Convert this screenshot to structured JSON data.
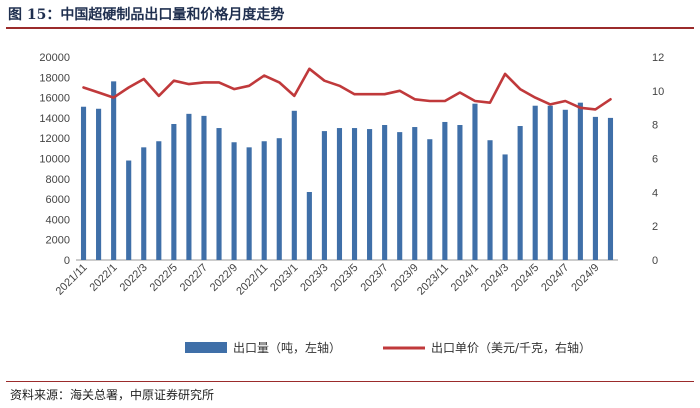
{
  "figure": {
    "title": "图 15：中国超硬制品出口量和价格月度走势",
    "source": "资料来源：海关总署，中原证券研究所"
  },
  "chart_data": {
    "type": "bar+line",
    "categories": [
      "2021/11",
      "2021/12",
      "2022/1",
      "2022/2",
      "2022/3",
      "2022/4",
      "2022/5",
      "2022/6",
      "2022/7",
      "2022/8",
      "2022/9",
      "2022/10",
      "2022/11",
      "2022/12",
      "2023/1",
      "2023/2",
      "2023/3",
      "2023/4",
      "2023/5",
      "2023/6",
      "2023/7",
      "2023/8",
      "2023/9",
      "2023/10",
      "2023/11",
      "2023/12",
      "2024/1",
      "2024/2",
      "2024/3",
      "2024/4",
      "2024/5",
      "2024/6",
      "2024/7",
      "2024/8",
      "2024/9",
      "2024/10"
    ],
    "x_tick_labels": [
      "2021/11",
      "2022/1",
      "2022/3",
      "2022/5",
      "2022/7",
      "2022/9",
      "2022/11",
      "2023/1",
      "2023/3",
      "2023/5",
      "2023/7",
      "2023/9",
      "2023/11",
      "2024/1",
      "2024/3",
      "2024/5",
      "2024/7",
      "2024/9"
    ],
    "series": [
      {
        "name": "出口量（吨，左轴）",
        "type": "bar",
        "axis": "left",
        "color": "#3f6fa8",
        "values": [
          15100,
          14900,
          17600,
          9800,
          11100,
          11700,
          13400,
          14400,
          14200,
          13000,
          11600,
          11100,
          11700,
          12000,
          14700,
          6700,
          12700,
          13000,
          13000,
          12900,
          13300,
          12600,
          13100,
          11900,
          13600,
          13300,
          15400,
          11800,
          10400,
          13200,
          15200,
          15200,
          14800,
          15500,
          14100,
          14000
        ]
      },
      {
        "name": "出口单价（美元/千克，右轴）",
        "type": "line",
        "axis": "right",
        "color": "#c0393b",
        "values": [
          10.2,
          9.9,
          9.6,
          10.2,
          10.7,
          9.7,
          10.6,
          10.4,
          10.5,
          10.5,
          10.1,
          10.3,
          10.9,
          10.5,
          9.7,
          11.3,
          10.6,
          10.3,
          9.8,
          9.8,
          9.8,
          10.0,
          9.5,
          9.4,
          9.4,
          9.9,
          9.4,
          9.3,
          11.0,
          10.1,
          9.6,
          9.2,
          9.4,
          9.0,
          8.9,
          9.5
        ]
      }
    ],
    "y_left": {
      "min": 0,
      "max": 20000,
      "ticks": [
        0,
        2000,
        4000,
        6000,
        8000,
        10000,
        12000,
        14000,
        16000,
        18000,
        20000
      ]
    },
    "y_right": {
      "min": 0,
      "max": 12,
      "ticks": [
        0,
        2,
        4,
        6,
        8,
        10,
        12
      ]
    },
    "grid": false,
    "legend_position": "bottom"
  }
}
